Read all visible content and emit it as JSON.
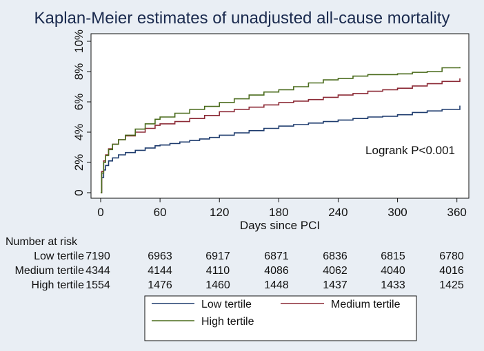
{
  "chart_data": {
    "type": "line",
    "title": "Kaplan-Meier estimates of unadjusted all-cause mortality",
    "xlabel": "Days since PCI",
    "ylabel": "",
    "xlim": [
      0,
      365
    ],
    "ylim": [
      0,
      10
    ],
    "xticks": [
      0,
      60,
      120,
      180,
      240,
      300,
      360
    ],
    "yticks": [
      0,
      2,
      4,
      6,
      8,
      10
    ],
    "ytick_labels": [
      "0",
      "2%",
      "4%",
      "6%",
      "8%",
      "10%"
    ],
    "annotation": "Logrank P<0.001",
    "series": [
      {
        "name": "Low tertile",
        "color": "#1f3c6e",
        "x": [
          0,
          1,
          3,
          5,
          8,
          12,
          18,
          25,
          35,
          45,
          55,
          60,
          70,
          80,
          90,
          100,
          110,
          120,
          135,
          150,
          165,
          180,
          195,
          210,
          225,
          240,
          255,
          270,
          285,
          300,
          315,
          330,
          345,
          363
        ],
        "y": [
          0,
          1.0,
          1.5,
          1.8,
          2.1,
          2.3,
          2.5,
          2.65,
          2.8,
          2.95,
          3.1,
          3.15,
          3.25,
          3.35,
          3.45,
          3.55,
          3.65,
          3.8,
          3.95,
          4.1,
          4.25,
          4.4,
          4.5,
          4.6,
          4.7,
          4.8,
          4.9,
          5.0,
          5.05,
          5.15,
          5.3,
          5.4,
          5.5,
          5.75
        ]
      },
      {
        "name": "Medium tertile",
        "color": "#8c2a36",
        "x": [
          0,
          1,
          3,
          5,
          8,
          12,
          18,
          25,
          35,
          45,
          55,
          60,
          75,
          90,
          105,
          120,
          135,
          150,
          165,
          180,
          195,
          210,
          225,
          240,
          255,
          270,
          285,
          300,
          315,
          330,
          345,
          363
        ],
        "y": [
          0,
          1.4,
          2.1,
          2.5,
          2.9,
          3.2,
          3.5,
          3.75,
          4.0,
          4.25,
          4.45,
          4.55,
          4.7,
          4.9,
          5.1,
          5.35,
          5.5,
          5.65,
          5.8,
          5.95,
          6.05,
          6.15,
          6.3,
          6.45,
          6.55,
          6.7,
          6.8,
          6.9,
          7.05,
          7.2,
          7.35,
          7.55
        ]
      },
      {
        "name": "High tertile",
        "color": "#4a6b1c",
        "x": [
          0,
          1,
          3,
          5,
          8,
          12,
          18,
          25,
          35,
          45,
          55,
          60,
          75,
          90,
          105,
          120,
          135,
          150,
          165,
          180,
          195,
          210,
          225,
          240,
          255,
          270,
          285,
          300,
          315,
          330,
          345,
          363
        ],
        "y": [
          0,
          1.3,
          2.0,
          2.45,
          2.85,
          3.2,
          3.5,
          3.8,
          4.2,
          4.55,
          4.85,
          5.0,
          5.25,
          5.5,
          5.7,
          5.95,
          6.2,
          6.45,
          6.65,
          6.8,
          7.0,
          7.25,
          7.45,
          7.55,
          7.7,
          7.8,
          7.8,
          7.85,
          7.95,
          8.0,
          8.25,
          8.3
        ]
      }
    ]
  },
  "risk_table": {
    "header": "Number at risk",
    "rows": [
      {
        "label": "Low tertile",
        "counts": [
          "7190",
          "6963",
          "6917",
          "6871",
          "6836",
          "6815",
          "6780"
        ]
      },
      {
        "label": "Medium tertile",
        "counts": [
          "4344",
          "4144",
          "4110",
          "4086",
          "4062",
          "4040",
          "4016"
        ]
      },
      {
        "label": "High tertile",
        "counts": [
          "1554",
          "1476",
          "1460",
          "1448",
          "1437",
          "1433",
          "1425"
        ]
      }
    ]
  },
  "legend": {
    "items": [
      {
        "label": "Low tertile",
        "color": "#1f3c6e"
      },
      {
        "label": "Medium tertile",
        "color": "#8c2a36"
      },
      {
        "label": "High tertile",
        "color": "#4a6b1c"
      }
    ]
  }
}
